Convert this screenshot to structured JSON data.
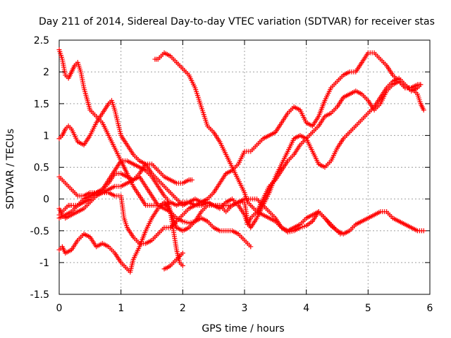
{
  "chart_data": {
    "type": "scatter",
    "title": "Day 211 of 2014, Sidereal Day-to-day VTEC variation (SDTVAR) for receiver stas",
    "xlabel": "GPS time / hours",
    "ylabel": "SDTVAR / TECUs",
    "xlim": [
      0,
      6
    ],
    "ylim": [
      -1.5,
      2.5
    ],
    "xticks": [
      0,
      1,
      2,
      3,
      4,
      5,
      6
    ],
    "yticks": [
      -1.5,
      -1,
      -0.5,
      0,
      0.5,
      1,
      1.5,
      2,
      2.5
    ],
    "xtick_labels": [
      "0",
      "1",
      "2",
      "3",
      "4",
      "5",
      "6"
    ],
    "ytick_labels": [
      "-1.5",
      "-1",
      "-0.5",
      "0",
      "0.5",
      "1",
      "1.5",
      "2",
      "2.5"
    ],
    "grid": true,
    "marker": "+",
    "color": "#ff0000",
    "series": [
      {
        "x": [
          0.0,
          0.05,
          0.1,
          0.15,
          0.2,
          0.25,
          0.3,
          0.35,
          0.4,
          0.5,
          0.6,
          0.7,
          0.8,
          0.9,
          1.0,
          1.05,
          1.1,
          1.2,
          1.3,
          1.4,
          1.5,
          1.6,
          1.7,
          1.8,
          1.9,
          2.0,
          2.1,
          2.2,
          2.3,
          2.4,
          2.5,
          2.6,
          2.7,
          2.8,
          2.9,
          3.0,
          3.1
        ],
        "y": [
          2.35,
          2.2,
          1.95,
          1.9,
          2.0,
          2.1,
          2.15,
          2.0,
          1.75,
          1.4,
          1.3,
          1.2,
          1.0,
          0.8,
          0.6,
          0.5,
          0.4,
          0.2,
          0.05,
          -0.1,
          -0.1,
          -0.1,
          -0.15,
          -0.2,
          -0.3,
          -0.35,
          -0.38,
          -0.35,
          -0.3,
          -0.35,
          -0.45,
          -0.5,
          -0.5,
          -0.5,
          -0.55,
          -0.65,
          -0.75
        ]
      },
      {
        "x": [
          1.55,
          1.6,
          1.7,
          1.8,
          1.9,
          2.0,
          2.1,
          2.2,
          2.3,
          2.4,
          2.5,
          2.6,
          2.7,
          2.8,
          2.9,
          3.0,
          3.05,
          3.1,
          3.2,
          3.3,
          3.4,
          3.5,
          3.6,
          3.7,
          3.8,
          3.9,
          4.0,
          4.1,
          4.2,
          4.3,
          4.4,
          4.5,
          4.55
        ],
        "y": [
          2.2,
          2.2,
          2.3,
          2.25,
          2.15,
          2.05,
          1.95,
          1.75,
          1.45,
          1.15,
          1.05,
          0.9,
          0.7,
          0.5,
          0.3,
          0.1,
          -0.05,
          -0.1,
          -0.2,
          -0.25,
          -0.3,
          -0.35,
          -0.45,
          -0.52,
          -0.5,
          -0.45,
          -0.42,
          -0.35,
          -0.2,
          -0.3,
          -0.42,
          -0.5,
          -0.55
        ]
      },
      {
        "x": [
          0.0,
          0.05,
          0.1,
          0.15,
          0.2,
          0.3,
          0.4,
          0.5,
          0.6,
          0.7,
          0.8,
          0.85,
          0.9,
          1.0,
          1.1,
          1.2,
          1.3,
          1.4,
          1.5,
          1.6,
          1.7,
          1.8,
          1.9,
          2.0,
          2.1,
          2.2,
          2.3,
          2.4,
          2.5,
          2.6,
          2.7,
          2.8,
          2.9,
          3.0,
          3.1,
          3.2,
          3.3,
          3.4,
          3.5,
          3.6,
          3.7,
          3.8,
          3.9,
          4.0,
          4.1,
          4.2,
          4.3,
          4.4,
          4.5,
          4.6,
          4.7,
          4.8,
          4.9,
          5.0,
          5.1,
          5.2,
          5.3,
          5.4,
          5.5,
          5.6,
          5.7,
          5.8,
          5.9
        ],
        "y": [
          0.95,
          1.0,
          1.1,
          1.15,
          1.1,
          0.9,
          0.85,
          1.0,
          1.2,
          1.35,
          1.5,
          1.55,
          1.4,
          1.0,
          0.85,
          0.7,
          0.6,
          0.55,
          0.4,
          0.3,
          0.2,
          0.1,
          0.0,
          -0.1,
          -0.05,
          -0.1,
          -0.05,
          -0.05,
          -0.1,
          -0.1,
          -0.1,
          -0.1,
          -0.05,
          0.0,
          0.0,
          0.0,
          -0.1,
          -0.2,
          -0.3,
          -0.45,
          -0.5,
          -0.45,
          -0.4,
          -0.3,
          -0.25,
          -0.2,
          -0.3,
          -0.4,
          -0.5,
          -0.55,
          -0.5,
          -0.4,
          -0.35,
          -0.3,
          -0.25,
          -0.2,
          -0.2,
          -0.3,
          -0.35,
          -0.4,
          -0.45,
          -0.5,
          -0.5
        ]
      },
      {
        "x": [
          0.0,
          0.05,
          0.1,
          0.2,
          0.3,
          0.4,
          0.5,
          0.6,
          0.7,
          0.8,
          0.9,
          1.0,
          1.1,
          1.2,
          1.3,
          1.4,
          1.5,
          1.6,
          1.7,
          1.8,
          1.9,
          2.0,
          2.1,
          2.15
        ],
        "y": [
          0.35,
          0.3,
          0.25,
          0.15,
          0.05,
          0.05,
          0.1,
          0.1,
          0.15,
          0.25,
          0.4,
          0.4,
          0.35,
          0.3,
          0.4,
          0.55,
          0.55,
          0.45,
          0.35,
          0.3,
          0.25,
          0.25,
          0.3,
          0.3
        ]
      },
      {
        "x": [
          0.0,
          0.1,
          0.2,
          0.3,
          0.4,
          0.5,
          0.6,
          0.7,
          0.8,
          0.9,
          1.0,
          1.1,
          1.2,
          1.3,
          1.4,
          1.5,
          1.6,
          1.7,
          1.8,
          1.9,
          2.0,
          2.1,
          2.2,
          2.3,
          2.4,
          2.5,
          2.6,
          2.7,
          2.8,
          2.9,
          3.0,
          3.1,
          3.2,
          3.3,
          3.4,
          3.5,
          3.6,
          3.7,
          3.8,
          3.9,
          4.0,
          4.1,
          4.2,
          4.3,
          4.4,
          4.5,
          4.6,
          4.7,
          4.8,
          4.9,
          5.0,
          5.1,
          5.2,
          5.3,
          5.4,
          5.5,
          5.6,
          5.7,
          5.8,
          5.85,
          5.9
        ],
        "y": [
          -0.3,
          -0.25,
          -0.2,
          -0.1,
          0.0,
          0.05,
          0.1,
          0.1,
          0.15,
          0.2,
          0.2,
          0.25,
          0.3,
          0.35,
          0.2,
          0.05,
          -0.1,
          -0.1,
          -0.05,
          -0.1,
          -0.05,
          -0.05,
          0.0,
          -0.05,
          0.0,
          0.1,
          0.25,
          0.4,
          0.45,
          0.55,
          0.75,
          0.75,
          0.85,
          0.95,
          1.0,
          1.05,
          1.2,
          1.35,
          1.45,
          1.4,
          1.2,
          1.15,
          1.3,
          1.55,
          1.75,
          1.85,
          1.95,
          2.0,
          2.0,
          2.15,
          2.3,
          2.3,
          2.2,
          2.1,
          1.95,
          1.85,
          1.75,
          1.75,
          1.65,
          1.5,
          1.4
        ]
      },
      {
        "x": [
          0.0,
          0.05,
          0.1,
          0.2,
          0.3,
          0.4,
          0.5,
          0.6,
          0.7,
          0.8,
          0.9,
          1.0,
          1.1,
          1.15,
          1.2,
          1.3,
          1.4,
          1.5,
          1.6,
          1.7,
          1.8,
          1.9,
          2.0,
          2.1,
          2.2,
          2.3,
          2.4,
          2.5,
          2.6,
          2.7,
          2.8,
          2.9,
          3.0,
          3.05,
          3.1,
          3.2,
          3.3,
          3.4,
          3.5,
          3.6,
          3.7,
          3.8,
          3.9,
          4.0,
          4.1,
          4.2,
          4.3,
          4.4,
          4.5,
          4.6,
          4.7,
          4.8,
          4.9,
          5.0,
          5.1,
          5.2,
          5.3,
          5.4,
          5.5,
          5.6,
          5.7,
          5.8,
          5.85
        ],
        "y": [
          -0.8,
          -0.75,
          -0.85,
          -0.8,
          -0.65,
          -0.55,
          -0.6,
          -0.75,
          -0.7,
          -0.75,
          -0.85,
          -1.0,
          -1.1,
          -1.15,
          -0.95,
          -0.75,
          -0.5,
          -0.3,
          -0.15,
          -0.05,
          -0.2,
          -0.45,
          -0.5,
          -0.45,
          -0.35,
          -0.2,
          -0.1,
          -0.1,
          -0.15,
          -0.05,
          0.0,
          -0.1,
          -0.25,
          -0.4,
          -0.3,
          -0.2,
          0.0,
          0.2,
          0.3,
          0.45,
          0.6,
          0.7,
          0.85,
          0.95,
          1.05,
          1.15,
          1.3,
          1.35,
          1.45,
          1.6,
          1.65,
          1.7,
          1.65,
          1.55,
          1.4,
          1.5,
          1.7,
          1.8,
          1.85,
          1.75,
          1.75,
          1.8,
          1.8
        ]
      },
      {
        "x": [
          0.0,
          0.05,
          0.1,
          0.2,
          0.3,
          0.4,
          0.5,
          0.6,
          0.7,
          0.8,
          0.9,
          1.0,
          1.05,
          1.1,
          1.2,
          1.3,
          1.4,
          1.5,
          1.6,
          1.7,
          1.8,
          1.9,
          2.0,
          2.1,
          2.2,
          2.3,
          2.4,
          2.5,
          2.6,
          2.7,
          2.8,
          2.9,
          3.0,
          3.05,
          3.1,
          3.2,
          3.3,
          3.4,
          3.5,
          3.6,
          3.7,
          3.8,
          3.9,
          4.0,
          4.1,
          4.2,
          4.3,
          4.4,
          4.5,
          4.6,
          4.7,
          4.8,
          4.9,
          5.0,
          5.1,
          5.2,
          5.3,
          5.4,
          5.5,
          5.6,
          5.7,
          5.8,
          5.85
        ],
        "y": [
          -0.15,
          -0.25,
          -0.3,
          -0.25,
          -0.2,
          -0.15,
          -0.05,
          0.05,
          0.1,
          0.1,
          0.05,
          0.05,
          -0.3,
          -0.45,
          -0.6,
          -0.7,
          -0.7,
          -0.65,
          -0.55,
          -0.45,
          -0.45,
          -0.35,
          -0.25,
          -0.15,
          -0.1,
          -0.1,
          -0.05,
          -0.1,
          -0.1,
          -0.2,
          -0.1,
          -0.05,
          -0.05,
          -0.35,
          -0.45,
          -0.3,
          -0.1,
          0.1,
          0.35,
          0.55,
          0.75,
          0.95,
          1.0,
          0.95,
          0.75,
          0.55,
          0.5,
          0.6,
          0.8,
          0.95,
          1.05,
          1.15,
          1.25,
          1.35,
          1.45,
          1.6,
          1.75,
          1.85,
          1.9,
          1.8,
          1.7,
          1.75,
          1.8
        ]
      },
      {
        "x": [
          0.0,
          0.05,
          0.1,
          0.15,
          0.2,
          0.3,
          0.4,
          0.5,
          0.6,
          0.7,
          0.8,
          0.9,
          1.0,
          1.1,
          1.2,
          1.3,
          1.4,
          1.5,
          1.6,
          1.7,
          1.75,
          1.8,
          1.85,
          1.9,
          1.95,
          2.0
        ],
        "y": [
          -0.25,
          -0.2,
          -0.15,
          -0.1,
          -0.1,
          -0.1,
          -0.05,
          0.0,
          0.1,
          0.15,
          0.3,
          0.45,
          0.6,
          0.6,
          0.55,
          0.5,
          0.45,
          0.35,
          0.2,
          0.05,
          0.0,
          -0.2,
          -0.5,
          -0.8,
          -1.0,
          -1.05
        ]
      },
      {
        "x": [
          1.7,
          1.75,
          1.8,
          1.85,
          1.9,
          1.95,
          2.0
        ],
        "y": [
          -1.1,
          -1.08,
          -1.05,
          -1.0,
          -0.95,
          -0.9,
          -0.85
        ]
      }
    ]
  }
}
